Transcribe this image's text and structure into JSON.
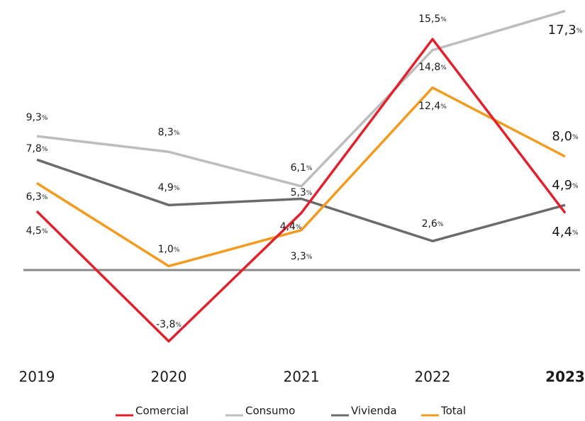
{
  "chart_data": {
    "type": "line",
    "categories": [
      "2019",
      "2020",
      "2021",
      "2022",
      "2023"
    ],
    "ylim": [
      -5,
      18
    ],
    "series": [
      {
        "name": "Comercial",
        "color": "#e0222c",
        "values": [
          4.5,
          -3.8,
          4.4,
          15.5,
          4.4
        ],
        "value_labels": [
          "4,5%",
          "-3,8%",
          "4,4%",
          "15,5%",
          "4,4%"
        ]
      },
      {
        "name": "Consumo",
        "color": "#bdbdbd",
        "values": [
          9.3,
          8.3,
          6.1,
          14.8,
          17.3
        ],
        "value_labels": [
          "9,3%",
          "8,3%",
          "6,1%",
          "14,8%",
          "17,3%"
        ]
      },
      {
        "name": "Vivienda",
        "color": "#6b6b6b",
        "values": [
          7.8,
          4.9,
          5.3,
          2.6,
          4.9
        ],
        "value_labels": [
          "7,8%",
          "4,9%",
          "5,3%",
          "2,6%",
          "4,9%"
        ]
      },
      {
        "name": "Total",
        "color": "#f29b1f",
        "values": [
          6.3,
          1.0,
          3.3,
          12.4,
          8.0
        ],
        "value_labels": [
          "6,3%",
          "1,0%",
          "3,3%",
          "12,4%",
          "8,0%"
        ]
      }
    ]
  }
}
